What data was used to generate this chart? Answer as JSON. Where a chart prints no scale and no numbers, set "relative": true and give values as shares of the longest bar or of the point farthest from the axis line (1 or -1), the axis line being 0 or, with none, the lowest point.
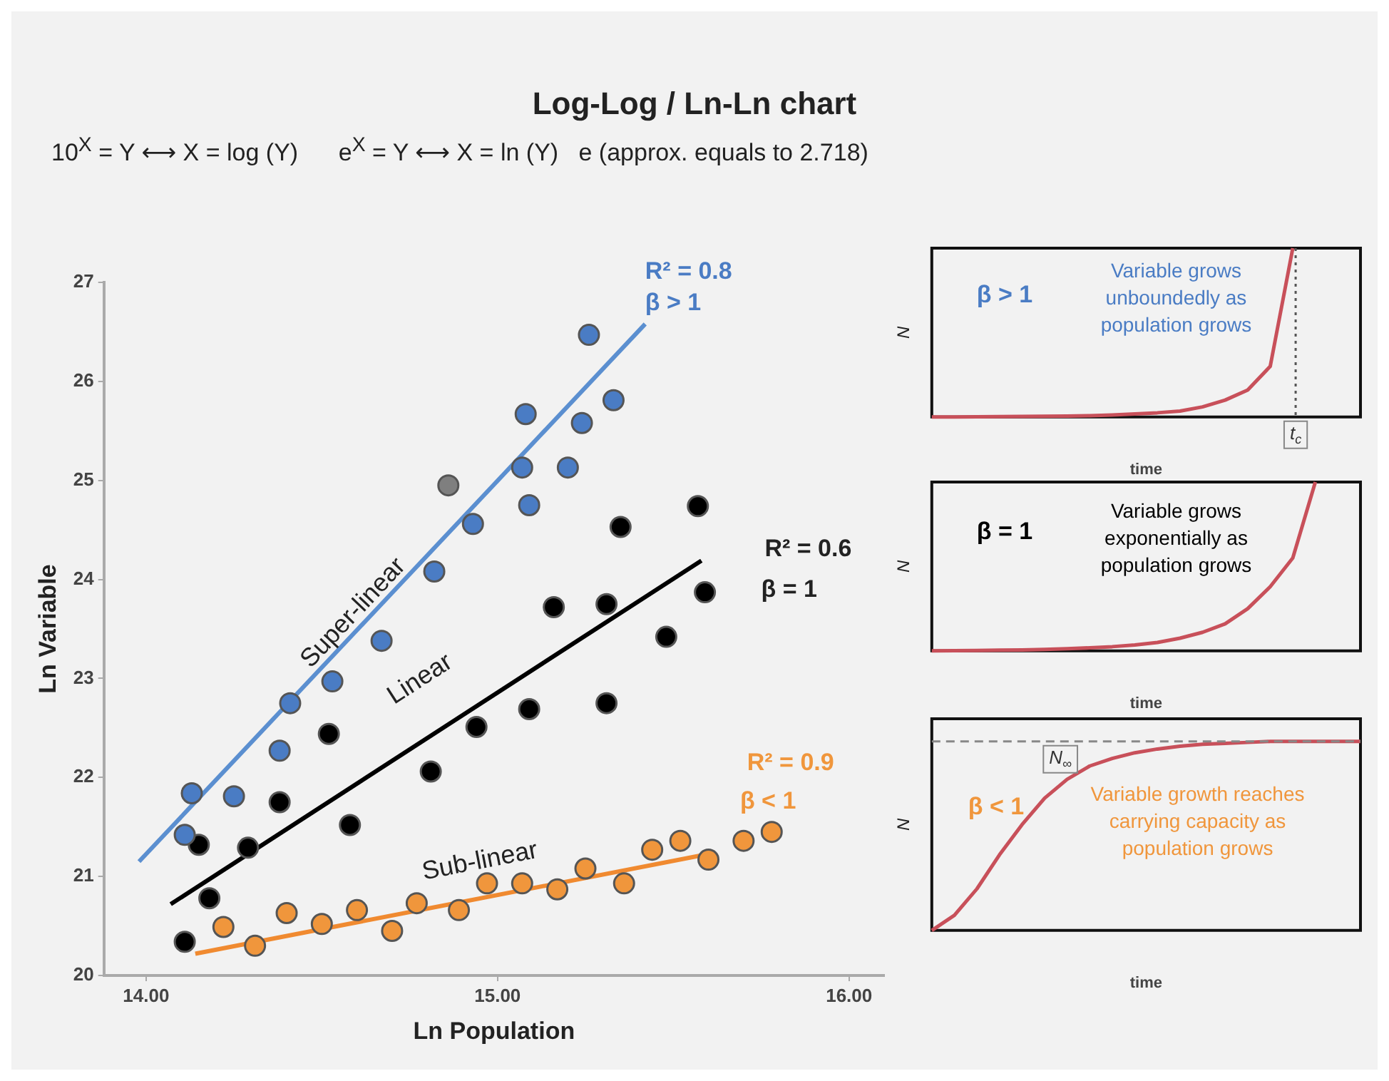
{
  "chart_data": [
    {
      "type": "scatter",
      "title": "Log-Log / Ln-Ln chart",
      "subtitle": "10$^{X}$ = Y ⟷ X = log (Y)      e$^{X}$ = Y ⟷ X = ln (Y)   e (approx. equals to 2.718)",
      "xlabel": "Ln Population",
      "ylabel": "Ln Variable",
      "xlim": [
        13.88,
        16.1
      ],
      "xticks": [
        {
          "value": 14,
          "label": "14.00"
        },
        {
          "value": 15,
          "label": "15.00"
        },
        {
          "value": 16,
          "label": "16.00"
        }
      ],
      "ylim": [
        20,
        27
      ],
      "yticks": [
        20,
        21,
        22,
        23,
        24,
        25,
        26,
        27
      ],
      "grid": false,
      "legend": false,
      "marker": "circle",
      "series": [
        {
          "type": "scatter",
          "color": "#4a7cc4",
          "colors": [
            "#4a7cc4",
            "#4a7cc4",
            "#4a7cc4",
            "#4a7cc4",
            "#4a7cc4",
            "#4a7cc4",
            "#4a7cc4",
            "#4a7cc4",
            "#7f7f7f",
            "#4a7cc4",
            "#4a7cc4",
            "#4a7cc4",
            "#4a7cc4",
            "#4a7cc4",
            "#4a7cc4",
            "#4a7cc4",
            "#4a7cc4"
          ],
          "x": [
            14.11,
            14.13,
            14.25,
            14.38,
            14.41,
            14.53,
            14.67,
            14.82,
            14.86,
            14.93,
            15.07,
            15.08,
            15.09,
            15.2,
            15.24,
            15.26,
            15.33
          ],
          "values": [
            21.42,
            21.84,
            21.81,
            22.27,
            22.75,
            22.97,
            23.38,
            24.08,
            24.95,
            24.56,
            25.13,
            25.67,
            24.75,
            25.13,
            25.58,
            26.47,
            25.81
          ]
        },
        {
          "type": "scatter",
          "color": "#000000",
          "x": [
            14.11,
            14.15,
            14.18,
            14.29,
            14.38,
            14.52,
            14.58,
            14.81,
            14.94,
            15.09,
            15.16,
            15.31,
            15.31,
            15.35,
            15.48,
            15.57,
            15.59
          ],
          "values": [
            20.34,
            21.32,
            20.78,
            21.29,
            21.75,
            22.44,
            21.52,
            22.06,
            22.51,
            22.69,
            23.72,
            23.75,
            22.75,
            24.53,
            23.42,
            24.74,
            23.87
          ]
        },
        {
          "type": "scatter",
          "color": "#f0963c",
          "x": [
            14.22,
            14.31,
            14.4,
            14.5,
            14.6,
            14.7,
            14.77,
            14.89,
            14.97,
            15.07,
            15.17,
            15.25,
            15.36,
            15.44,
            15.52,
            15.6,
            15.7,
            15.78
          ],
          "values": [
            20.49,
            20.3,
            20.63,
            20.52,
            20.66,
            20.45,
            20.73,
            20.66,
            20.93,
            20.93,
            20.87,
            21.08,
            20.93,
            21.27,
            21.36,
            21.17,
            21.36,
            21.45
          ]
        },
        {
          "type": "line",
          "color": "#5b8fd0",
          "marker": "none",
          "x": [
            13.98,
            15.42
          ],
          "values": [
            21.15,
            26.58
          ]
        },
        {
          "type": "line",
          "color": "#000000",
          "marker": "none",
          "x": [
            14.07,
            15.58
          ],
          "values": [
            20.72,
            24.19
          ]
        },
        {
          "type": "line",
          "color": "#f08a30",
          "marker": "none",
          "x": [
            14.14,
            15.62
          ],
          "values": [
            20.22,
            21.24
          ]
        }
      ],
      "annotations": [
        "Super-linear",
        "Linear",
        "Sub-linear",
        "R² = 0.8",
        "β > 1",
        "R² = 0.6",
        "β = 1",
        "R² = 0.9",
        "β < 1"
      ]
    },
    {
      "type": "line",
      "relative": true,
      "xlabel": "time",
      "ylabel": "N",
      "legend": false,
      "grid": false,
      "categories": [
        null,
        null,
        null,
        null,
        null,
        null,
        null,
        null,
        null,
        null,
        null,
        null,
        null,
        null,
        null,
        null,
        null,
        null,
        null,
        null
      ],
      "series": [
        {
          "color": "#c8505a",
          "values": [
            0,
            0,
            0.001,
            0.002,
            0.003,
            0.004,
            0.006,
            0.008,
            0.012,
            0.018,
            0.025,
            0.035,
            0.06,
            0.1,
            0.16,
            0.3,
            1,
            null,
            null,
            null
          ]
        }
      ],
      "annotations": [
        "β > 1",
        "Variable grows unboundedly as population grows",
        "t$_{c}$"
      ]
    },
    {
      "type": "line",
      "relative": true,
      "xlabel": "time",
      "ylabel": "N",
      "legend": false,
      "grid": false,
      "categories": [
        null,
        null,
        null,
        null,
        null,
        null,
        null,
        null,
        null,
        null,
        null,
        null,
        null,
        null,
        null,
        null,
        null,
        null,
        null,
        null
      ],
      "series": [
        {
          "color": "#c8505a",
          "values": [
            0,
            0.001,
            0.002,
            0.004,
            0.006,
            0.009,
            0.013,
            0.018,
            0.025,
            0.035,
            0.05,
            0.075,
            0.11,
            0.16,
            0.25,
            0.38,
            0.55,
            1,
            null,
            null
          ]
        }
      ],
      "annotations": [
        "β = 1",
        "Variable grows exponentially as population grows"
      ]
    },
    {
      "type": "line",
      "relative": true,
      "xlabel": "time",
      "ylabel": "N",
      "legend": false,
      "grid": false,
      "categories": [
        null,
        null,
        null,
        null,
        null,
        null,
        null,
        null,
        null,
        null,
        null,
        null,
        null,
        null,
        null,
        null,
        null,
        null,
        null,
        null
      ],
      "series": [
        {
          "color": "#c8505a",
          "values": [
            0,
            0.08,
            0.22,
            0.4,
            0.56,
            0.7,
            0.8,
            0.87,
            0.91,
            0.94,
            0.96,
            0.975,
            0.985,
            0.99,
            0.995,
            1,
            1,
            1,
            1,
            1
          ]
        }
      ],
      "ref_lines": [
        {
          "axis": "y",
          "value": 1,
          "label": "N$_{∞}$",
          "color": "#888888",
          "line_style": "dashed"
        }
      ],
      "annotations": [
        "β < 1",
        "Variable growth reaches carrying capacity  as population grows"
      ]
    }
  ]
}
